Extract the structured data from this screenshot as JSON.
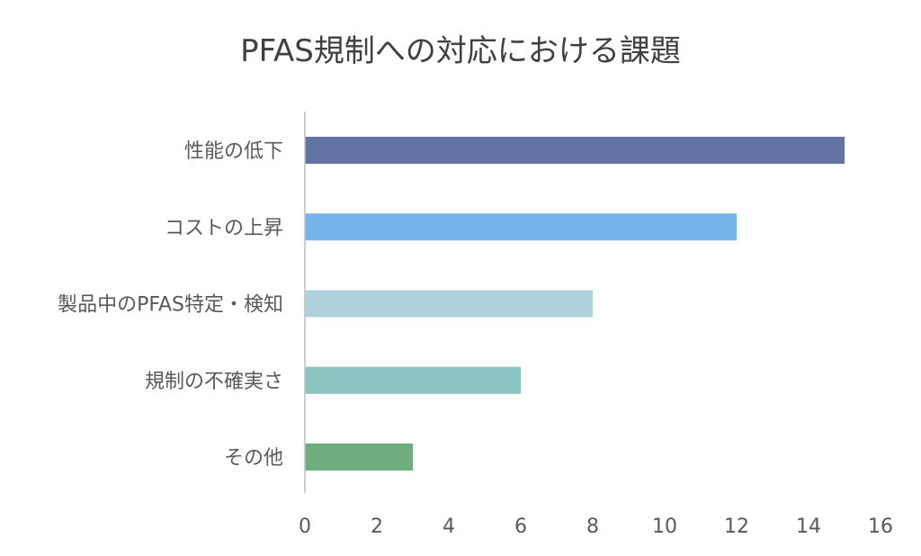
{
  "chart_data": {
    "type": "bar",
    "orientation": "horizontal",
    "title": "PFAS規制への対応における課題",
    "xlabel": "",
    "ylabel": "",
    "categories": [
      "性能の低下",
      "コストの上昇",
      "製品中のPFAS特定・検知",
      "規制の不確実さ",
      "その他"
    ],
    "values": [
      15,
      12,
      8,
      6,
      3
    ],
    "colors": [
      "#6474a2",
      "#76b3ec",
      "#afd1dc",
      "#8cc4c2",
      "#6fae7c"
    ],
    "xlim": [
      0,
      16
    ],
    "xticks": [
      0,
      2,
      4,
      6,
      8,
      10,
      12,
      14,
      16
    ],
    "grid": false,
    "legend": "none"
  }
}
